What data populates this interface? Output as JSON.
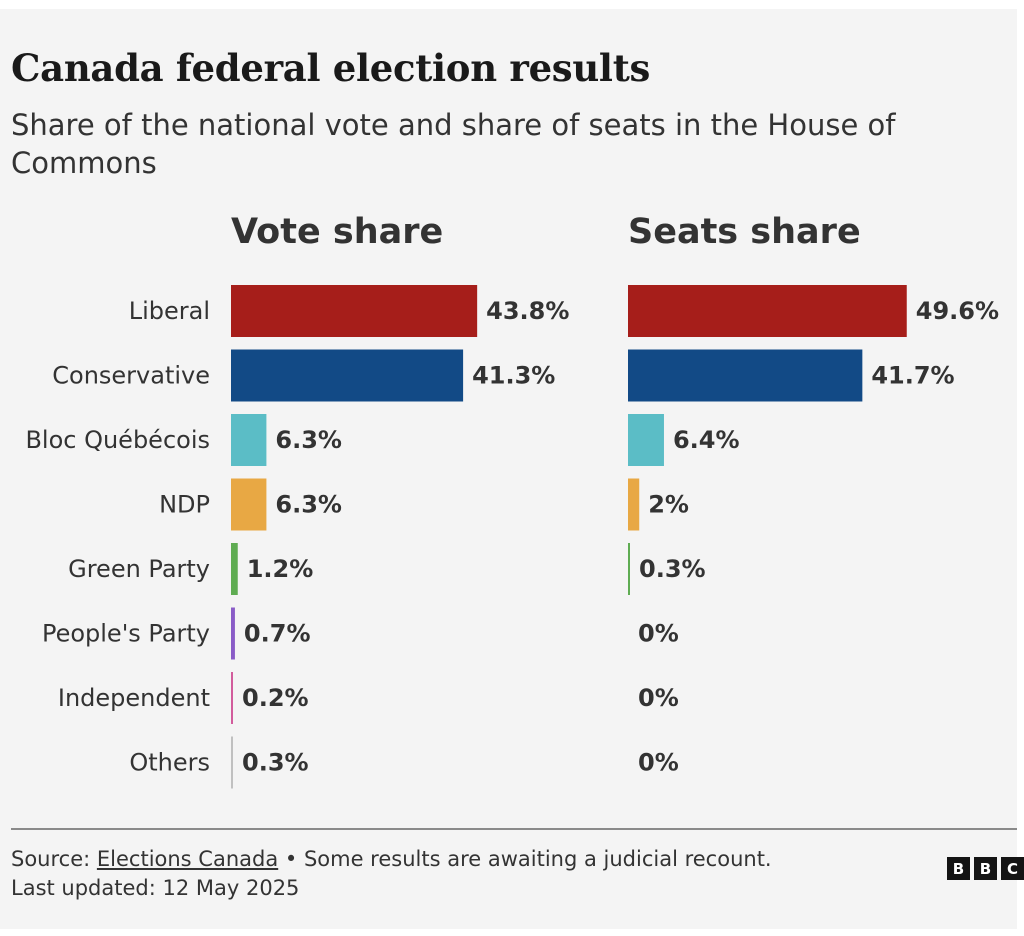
{
  "header": {
    "title": "Canada federal election results",
    "subtitle": "Share of the national vote and share of seats in the House of Commons"
  },
  "chart_data": {
    "type": "bar",
    "orientation": "horizontal",
    "categories": [
      "Liberal",
      "Conservative",
      "Bloc Québécois",
      "NDP",
      "Green Party",
      "People's Party",
      "Independent",
      "Others"
    ],
    "colors": [
      "#a61e1a",
      "#124a86",
      "#5bbdc6",
      "#e8a844",
      "#5fac52",
      "#8a5cc7",
      "#d25c9c",
      "#c0c0c0"
    ],
    "series": [
      {
        "name": "Vote share",
        "values": [
          43.8,
          41.3,
          6.3,
          6.3,
          1.2,
          0.7,
          0.2,
          0.3
        ],
        "labels": [
          "43.8%",
          "41.3%",
          "6.3%",
          "6.3%",
          "1.2%",
          "0.7%",
          "0.2%",
          "0.3%"
        ]
      },
      {
        "name": "Seats share",
        "values": [
          49.6,
          41.7,
          6.4,
          2,
          0.3,
          0,
          0,
          0
        ],
        "labels": [
          "49.6%",
          "41.7%",
          "6.4%",
          "2%",
          "0.3%",
          "0%",
          "0%",
          "0%"
        ]
      }
    ],
    "grid": false,
    "legend": "none"
  },
  "footer": {
    "source_prefix": "Source: ",
    "source_link": "Elections Canada",
    "source_note": " • Some results are awaiting a judicial recount.",
    "updated": "Last updated: 12 May 2025",
    "logo_letters": [
      "B",
      "B",
      "C"
    ]
  }
}
